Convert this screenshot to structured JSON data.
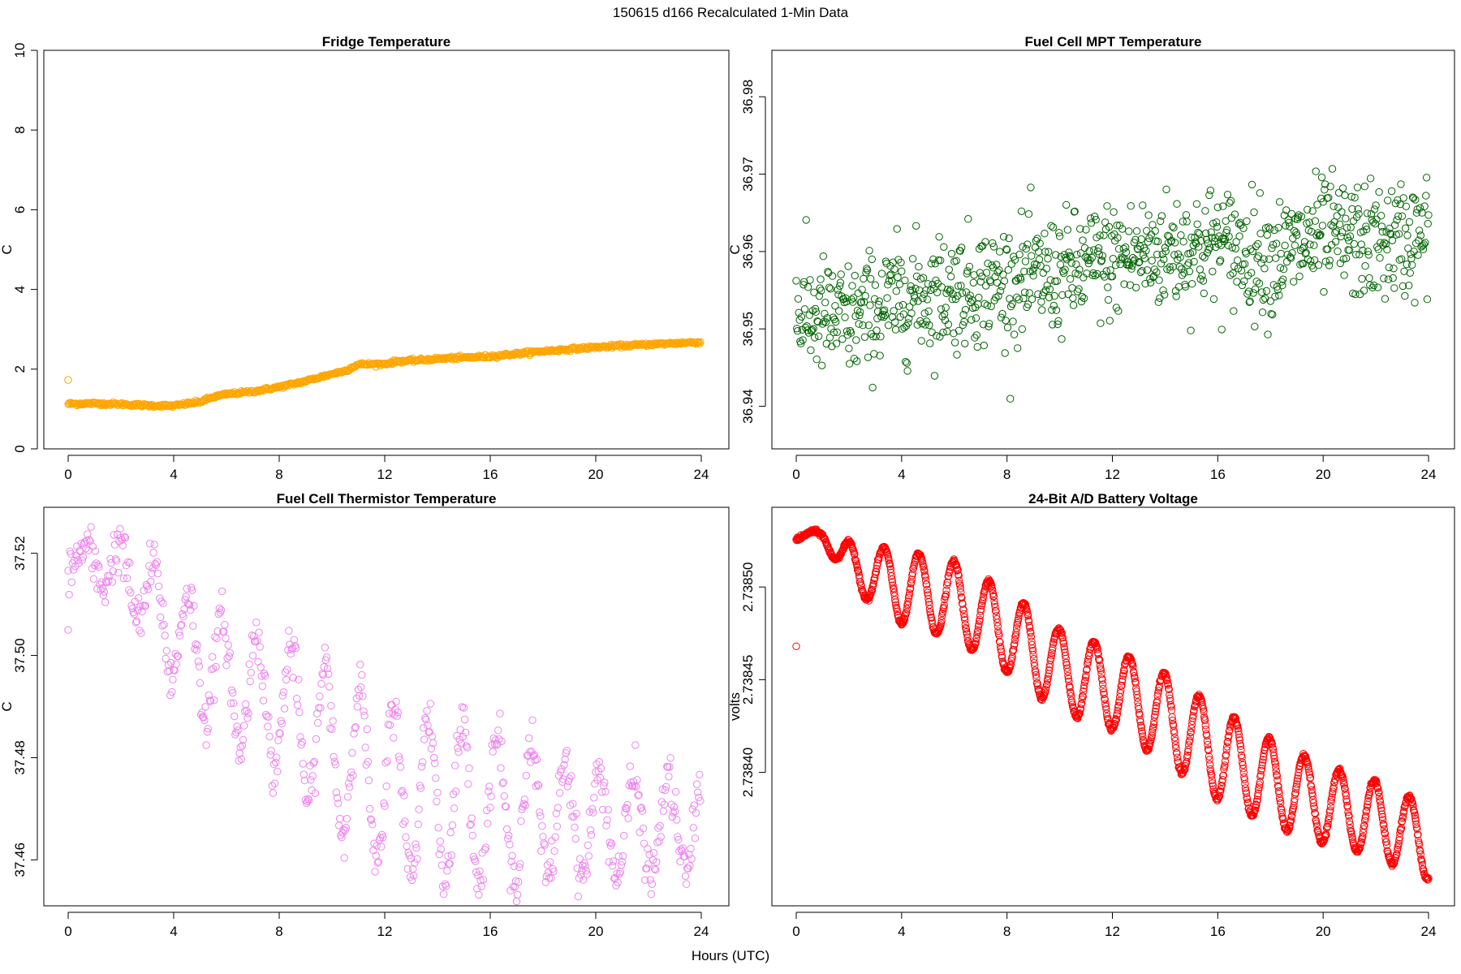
{
  "figure": {
    "title": "150615   d166   Recalculated 1-Min Data",
    "xlabel": "Hours (UTC)"
  },
  "chart_data": [
    {
      "type": "scatter",
      "title": "Fridge Temperature",
      "xlabel": "Hours (UTC)",
      "ylabel": "C",
      "xlim": [
        0,
        24
      ],
      "ylim": [
        0,
        10
      ],
      "xticks": [
        "0",
        "4",
        "8",
        "12",
        "16",
        "20",
        "24"
      ],
      "yticks": [
        "0",
        "2",
        "4",
        "6",
        "8",
        "10"
      ],
      "color": "#FFA500",
      "marker": "open-circle",
      "outliers": [
        {
          "x": 0.0,
          "y": 1.73
        }
      ],
      "trend": [
        {
          "x": 0,
          "y": 1.13
        },
        {
          "x": 1,
          "y": 1.14
        },
        {
          "x": 2,
          "y": 1.12
        },
        {
          "x": 3,
          "y": 1.09
        },
        {
          "x": 4,
          "y": 1.08
        },
        {
          "x": 5,
          "y": 1.18
        },
        {
          "x": 5.5,
          "y": 1.3
        },
        {
          "x": 6,
          "y": 1.37
        },
        {
          "x": 7,
          "y": 1.44
        },
        {
          "x": 8,
          "y": 1.55
        },
        {
          "x": 9,
          "y": 1.7
        },
        {
          "x": 10,
          "y": 1.88
        },
        {
          "x": 10.5,
          "y": 1.96
        },
        {
          "x": 11,
          "y": 2.12
        },
        {
          "x": 12,
          "y": 2.13
        },
        {
          "x": 12.5,
          "y": 2.2
        },
        {
          "x": 13,
          "y": 2.21
        },
        {
          "x": 14,
          "y": 2.26
        },
        {
          "x": 16,
          "y": 2.32
        },
        {
          "x": 18,
          "y": 2.45
        },
        {
          "x": 20,
          "y": 2.55
        },
        {
          "x": 22,
          "y": 2.62
        },
        {
          "x": 24,
          "y": 2.68
        }
      ],
      "noise": 0.04
    },
    {
      "type": "scatter",
      "title": "Fuel Cell MPT Temperature",
      "xlabel": "Hours (UTC)",
      "ylabel": "C",
      "xlim": [
        0,
        24
      ],
      "ylim": [
        36.9345,
        36.986
      ],
      "xticks": [
        "0",
        "4",
        "8",
        "12",
        "16",
        "20",
        "24"
      ],
      "yticks": [
        "36.94",
        "36.95",
        "36.96",
        "36.97",
        "36.98"
      ],
      "ytick_values": [
        36.94,
        36.95,
        36.96,
        36.97,
        36.98
      ],
      "color": "#006400",
      "marker": "open-circle",
      "trend": [
        {
          "x": 0,
          "y": 36.952
        },
        {
          "x": 2,
          "y": 36.951
        },
        {
          "x": 4,
          "y": 36.954
        },
        {
          "x": 6,
          "y": 36.955
        },
        {
          "x": 8,
          "y": 36.956
        },
        {
          "x": 10,
          "y": 36.957
        },
        {
          "x": 12,
          "y": 36.959
        },
        {
          "x": 14,
          "y": 36.96
        },
        {
          "x": 16,
          "y": 36.961
        },
        {
          "x": 18,
          "y": 36.959
        },
        {
          "x": 20,
          "y": 36.962
        },
        {
          "x": 22,
          "y": 36.961
        },
        {
          "x": 24,
          "y": 36.962
        }
      ],
      "noise": 0.0075,
      "point_every_min": 1.5
    },
    {
      "type": "scatter",
      "title": "Fuel Cell Thermistor Temperature",
      "xlabel": "Hours (UTC)",
      "ylabel": "C",
      "xlim": [
        0,
        24
      ],
      "ylim": [
        37.451,
        37.529
      ],
      "xticks": [
        "0",
        "4",
        "8",
        "12",
        "16",
        "20",
        "24"
      ],
      "yticks": [
        "37.46",
        "37.48",
        "37.50",
        "37.52"
      ],
      "ytick_values": [
        37.46,
        37.48,
        37.5,
        37.52
      ],
      "color": "#EE82EE",
      "marker": "open-circle",
      "outliers": [
        {
          "x": 0.0,
          "y": 37.505
        }
      ],
      "trend": [
        {
          "x": 0,
          "y": 37.519
        },
        {
          "x": 2,
          "y": 37.517
        },
        {
          "x": 4,
          "y": 37.505
        },
        {
          "x": 6,
          "y": 37.495
        },
        {
          "x": 8,
          "y": 37.49
        },
        {
          "x": 10,
          "y": 37.482
        },
        {
          "x": 12,
          "y": 37.474
        },
        {
          "x": 14,
          "y": 37.472
        },
        {
          "x": 16,
          "y": 37.47
        },
        {
          "x": 18,
          "y": 37.469
        },
        {
          "x": 20,
          "y": 37.467
        },
        {
          "x": 22,
          "y": 37.466
        },
        {
          "x": 24,
          "y": 37.467
        }
      ],
      "amplitude": [
        {
          "x": 0,
          "y": 0.002
        },
        {
          "x": 2,
          "y": 0.005
        },
        {
          "x": 4,
          "y": 0.01
        },
        {
          "x": 8,
          "y": 0.013
        },
        {
          "x": 12,
          "y": 0.017
        },
        {
          "x": 16,
          "y": 0.015
        },
        {
          "x": 20,
          "y": 0.01
        },
        {
          "x": 24,
          "y": 0.009
        }
      ],
      "period_hours": 1.3,
      "noise": 0.0025,
      "point_every_min": 2
    },
    {
      "type": "scatter",
      "title": "24-Bit A/D Battery Voltage",
      "xlabel": "Hours (UTC)",
      "ylabel": "volts",
      "xlim": [
        0,
        24
      ],
      "ylim": [
        2.738328,
        2.738543
      ],
      "xticks": [
        "0",
        "4",
        "8",
        "12",
        "16",
        "20",
        "24"
      ],
      "yticks": [
        "2.73840",
        "2.73845",
        "2.73850"
      ],
      "ytick_values": [
        2.7384,
        2.73845,
        2.7385
      ],
      "color": "#FF0000",
      "marker": "open-circle",
      "outliers": [
        {
          "x": 0.0,
          "y": 2.738468
        }
      ],
      "trend": [
        {
          "x": 0,
          "y": 2.738528
        },
        {
          "x": 1,
          "y": 2.738528
        },
        {
          "x": 2,
          "y": 2.738512
        },
        {
          "x": 4,
          "y": 2.7385
        },
        {
          "x": 6,
          "y": 2.738493
        },
        {
          "x": 8,
          "y": 2.738476
        },
        {
          "x": 10,
          "y": 2.738455
        },
        {
          "x": 12,
          "y": 2.738445
        },
        {
          "x": 14,
          "y": 2.73843
        },
        {
          "x": 16,
          "y": 2.73841
        },
        {
          "x": 18,
          "y": 2.738395
        },
        {
          "x": 20,
          "y": 2.738383
        },
        {
          "x": 22,
          "y": 2.738375
        },
        {
          "x": 24,
          "y": 2.738362
        }
      ],
      "amplitude": [
        {
          "x": 0,
          "y": 2e-06
        },
        {
          "x": 1,
          "y": 2e-06
        },
        {
          "x": 2,
          "y": 1.2e-05
        },
        {
          "x": 4,
          "y": 2e-05
        },
        {
          "x": 8,
          "y": 2.2e-05
        },
        {
          "x": 12,
          "y": 2.2e-05
        },
        {
          "x": 16,
          "y": 2.5e-05
        },
        {
          "x": 20,
          "y": 2.1e-05
        },
        {
          "x": 24,
          "y": 2e-05
        }
      ],
      "period_hours": 1.33,
      "noise": 5e-07,
      "point_every_min": 1
    }
  ]
}
